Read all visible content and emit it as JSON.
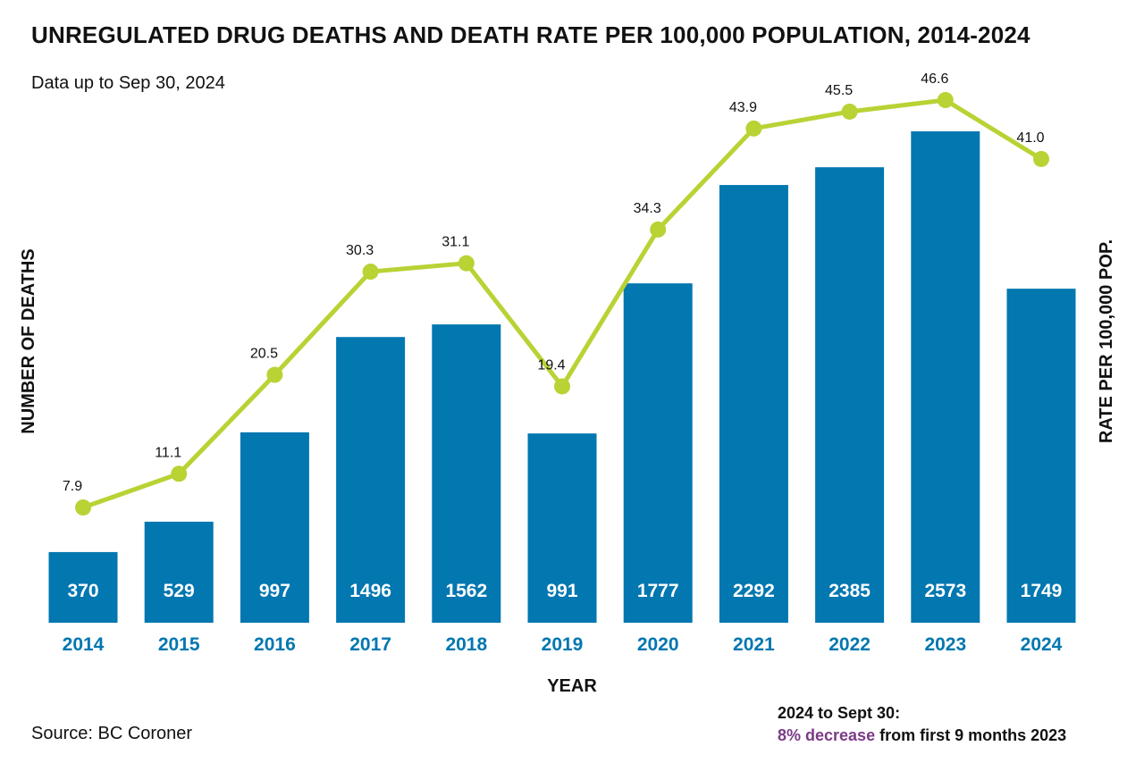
{
  "title": "UNREGULATED DRUG DEATHS AND DEATH RATE PER 100,000 POPULATION, 2014-2024",
  "subtitle": "Data up to Sep 30, 2024",
  "source": "Source: BC Coroner",
  "note": {
    "line1": "2024 to Sept 30:",
    "emphasis": "8% decrease",
    "rest": " from first 9 months 2023"
  },
  "colors": {
    "bars": "#0277b0",
    "line": "#b9d234",
    "emphasis": "#7b3b86"
  },
  "chart_data": {
    "type": "bar",
    "title": "UNREGULATED DRUG DEATHS AND DEATH RATE PER 100,000 POPULATION, 2014-2024",
    "xlabel": "YEAR",
    "ylabel": "NUMBER OF DEATHS",
    "y2label": "RATE PER 100,000 POP.",
    "categories": [
      "2014",
      "2015",
      "2016",
      "2017",
      "2018",
      "2019",
      "2020",
      "2021",
      "2022",
      "2023",
      "2024"
    ],
    "series": [
      {
        "name": "Number of deaths",
        "type": "bar",
        "axis": "left",
        "values": [
          370,
          529,
          997,
          1496,
          1562,
          991,
          1777,
          2292,
          2385,
          2573,
          1749
        ]
      },
      {
        "name": "Rate per 100,000 pop.",
        "type": "line",
        "axis": "right",
        "values": [
          7.9,
          11.1,
          20.5,
          30.3,
          31.1,
          19.4,
          34.3,
          43.9,
          45.5,
          46.6,
          41.0
        ],
        "labels": [
          "7.9",
          "11.1",
          "20.5",
          "30.3",
          "31.1",
          "19.4",
          "34.3",
          "43.9",
          "45.5",
          "46.6",
          "41.0"
        ]
      }
    ],
    "ylim": [
      0,
      3000
    ],
    "y2lim": [
      0,
      60
    ],
    "grid": false
  }
}
